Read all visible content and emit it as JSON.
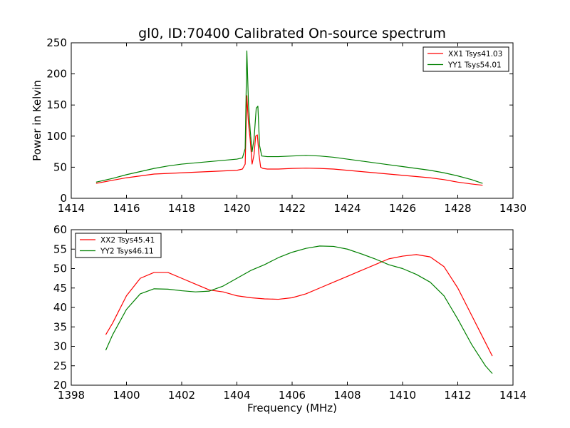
{
  "title": "gl0, ID:70400 Calibrated On-source spectrum",
  "chart_data": [
    {
      "type": "line",
      "ylabel": "Power in Kelvin",
      "xlabel": "",
      "xlim": [
        1414,
        1430
      ],
      "ylim": [
        0,
        250
      ],
      "xticks": [
        "1414",
        "1416",
        "1418",
        "1420",
        "1422",
        "1424",
        "1426",
        "1428",
        "1430"
      ],
      "yticks": [
        "0",
        "50",
        "100",
        "150",
        "200",
        "250"
      ],
      "legend_position": "top-right",
      "grid": false,
      "series": [
        {
          "name": "XX1 Tsys41.03",
          "color": "#ff0000",
          "x": [
            1414.9,
            1415.5,
            1416,
            1416.5,
            1417,
            1417.5,
            1418,
            1418.5,
            1419,
            1419.5,
            1420,
            1420.2,
            1420.3,
            1420.36,
            1420.42,
            1420.48,
            1420.55,
            1420.62,
            1420.68,
            1420.74,
            1420.8,
            1420.86,
            1420.94,
            1421.1,
            1421.5,
            1422,
            1422.5,
            1423,
            1423.5,
            1424,
            1424.5,
            1425,
            1425.5,
            1426,
            1426.5,
            1427,
            1427.5,
            1428,
            1428.5,
            1428.9
          ],
          "y": [
            24,
            29,
            33,
            36,
            39,
            40,
            41,
            42,
            43,
            44,
            45,
            47,
            55,
            165,
            120,
            95,
            55,
            70,
            100,
            102,
            70,
            50,
            48,
            47,
            47,
            48,
            48.5,
            48,
            47,
            45,
            43,
            41,
            39,
            37,
            35,
            33,
            30,
            26,
            23,
            21
          ]
        },
        {
          "name": "YY1 Tsys54.01",
          "color": "#008000",
          "x": [
            1414.9,
            1415.5,
            1416,
            1416.5,
            1417,
            1417.5,
            1418,
            1418.5,
            1419,
            1419.5,
            1420,
            1420.2,
            1420.3,
            1420.36,
            1420.42,
            1420.48,
            1420.55,
            1420.62,
            1420.7,
            1420.76,
            1420.82,
            1420.9,
            1421.1,
            1421.5,
            1422,
            1422.5,
            1423,
            1423.5,
            1424,
            1424.5,
            1425,
            1425.5,
            1426,
            1426.5,
            1427,
            1427.5,
            1428,
            1428.5,
            1428.9
          ],
          "y": [
            26,
            32,
            38,
            43,
            48,
            52,
            55,
            57,
            59,
            61,
            63,
            65,
            80,
            237,
            150,
            110,
            75,
            95,
            145,
            148,
            85,
            68,
            67,
            67,
            68,
            69,
            68,
            66,
            63,
            60,
            57,
            54,
            51,
            48,
            45,
            41,
            36,
            30,
            24
          ]
        }
      ]
    },
    {
      "type": "line",
      "xlabel": "Frequency (MHz)",
      "ylabel": "",
      "xlim": [
        1398,
        1414
      ],
      "ylim": [
        20,
        60
      ],
      "xticks": [
        "1398",
        "1400",
        "1402",
        "1404",
        "1406",
        "1408",
        "1410",
        "1412",
        "1414"
      ],
      "yticks": [
        "20",
        "25",
        "30",
        "35",
        "40",
        "45",
        "50",
        "55",
        "60"
      ],
      "legend_position": "top-left",
      "grid": false,
      "series": [
        {
          "name": "XX2 Tsys45.41",
          "color": "#ff0000",
          "x": [
            1399.25,
            1399.5,
            1400,
            1400.5,
            1401,
            1401.5,
            1402,
            1402.5,
            1403,
            1403.5,
            1404,
            1404.5,
            1405,
            1405.5,
            1406,
            1406.5,
            1407,
            1407.5,
            1408,
            1408.5,
            1409,
            1409.5,
            1410,
            1410.5,
            1411,
            1411.5,
            1412,
            1412.5,
            1413,
            1413.25
          ],
          "y": [
            33,
            36,
            43,
            47.5,
            49,
            49,
            47.5,
            46,
            44.5,
            44,
            43,
            42.5,
            42.2,
            42.1,
            42.5,
            43.5,
            45,
            46.5,
            48,
            49.5,
            51,
            52.5,
            53.2,
            53.6,
            53,
            50.5,
            45,
            38,
            31,
            27.5
          ]
        },
        {
          "name": "YY2 Tsys46.11",
          "color": "#008000",
          "x": [
            1399.25,
            1399.5,
            1400,
            1400.5,
            1401,
            1401.5,
            1402,
            1402.5,
            1403,
            1403.5,
            1404,
            1404.5,
            1405,
            1405.5,
            1406,
            1406.5,
            1407,
            1407.5,
            1408,
            1408.5,
            1409,
            1409.5,
            1410,
            1410.5,
            1411,
            1411.5,
            1412,
            1412.5,
            1413,
            1413.25
          ],
          "y": [
            29,
            33,
            39.5,
            43.5,
            44.8,
            44.7,
            44.3,
            44,
            44.2,
            45.5,
            47.5,
            49.5,
            51,
            52.8,
            54.2,
            55.2,
            55.8,
            55.7,
            55,
            53.8,
            52.5,
            51,
            50,
            48.5,
            46.5,
            43,
            37,
            30.5,
            25,
            23
          ]
        }
      ]
    }
  ]
}
